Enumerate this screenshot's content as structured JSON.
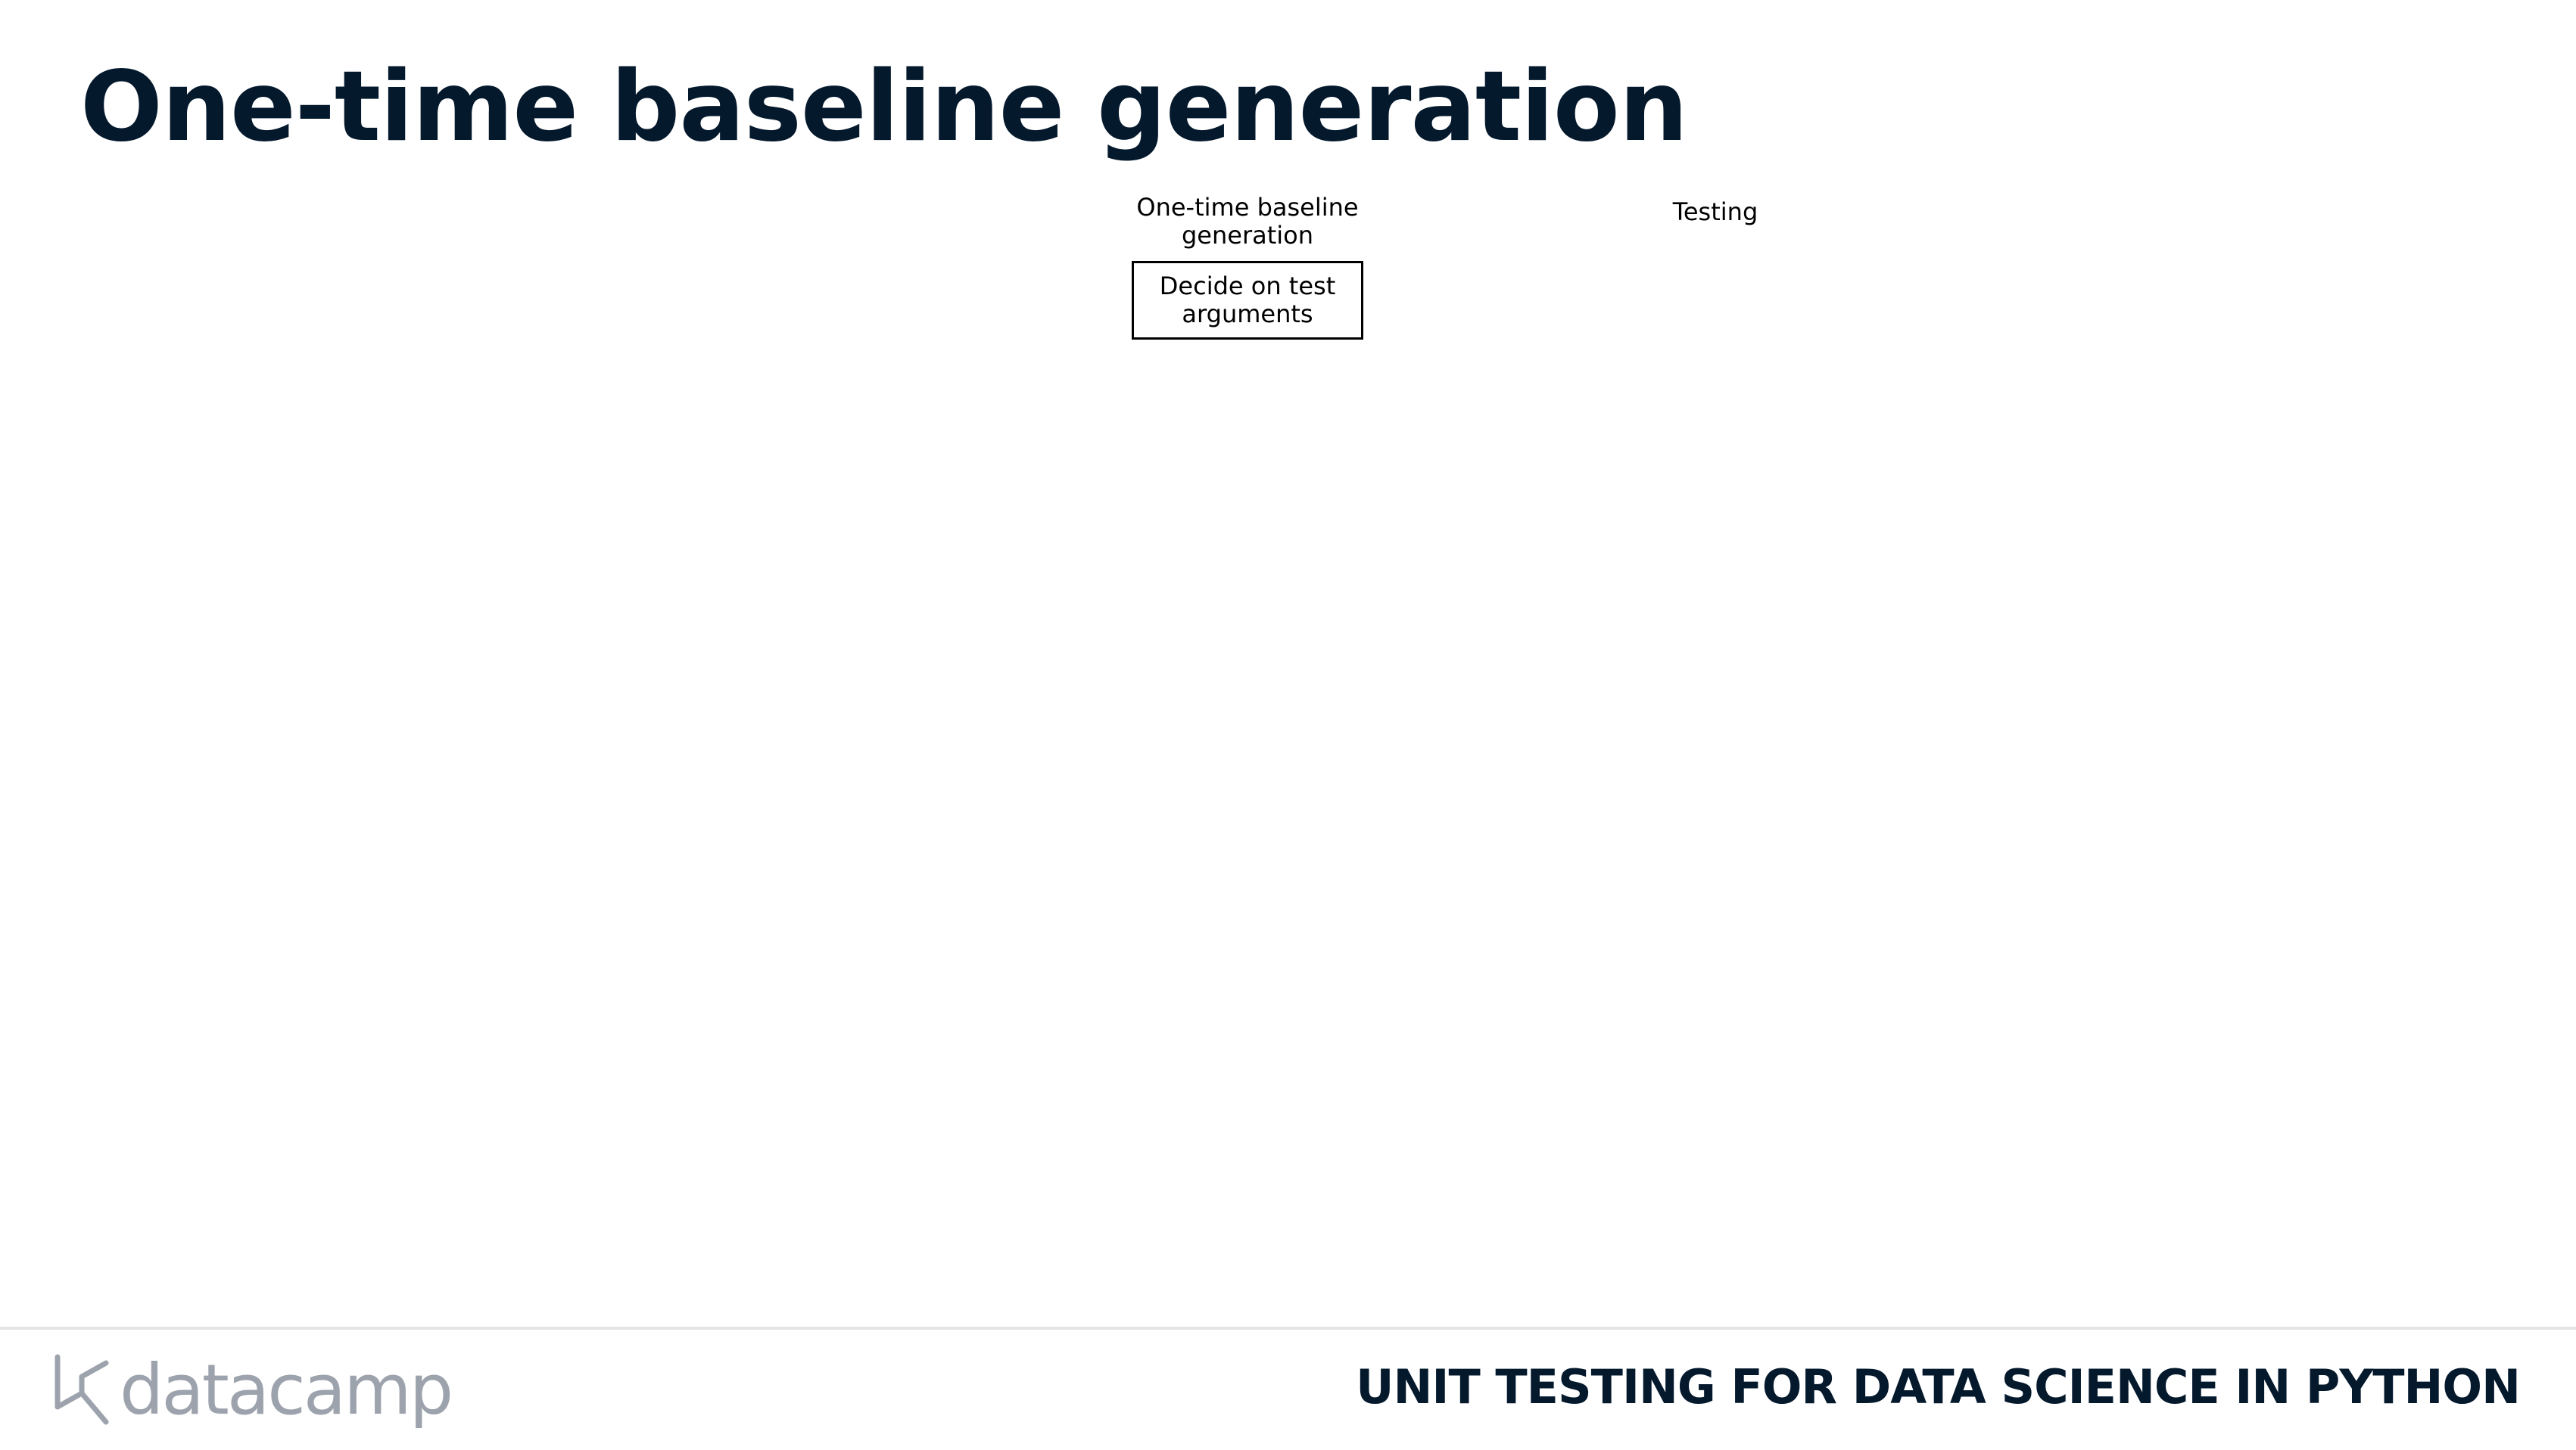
{
  "slide": {
    "title": "One-time baseline generation"
  },
  "diagram": {
    "columns": [
      {
        "header": "One-time baseline generation"
      },
      {
        "header": "Testing"
      }
    ],
    "steps": [
      {
        "label": "Decide on test arguments"
      }
    ]
  },
  "footer": {
    "logo_text": "datacamp",
    "course_title": "UNIT TESTING FOR DATA SCIENCE IN PYTHON",
    "logo_icon": "datacamp-logo-icon"
  },
  "colors": {
    "title": "#05192d",
    "logo": "#9da3ad",
    "footer_rule": "#e5e5e8"
  }
}
